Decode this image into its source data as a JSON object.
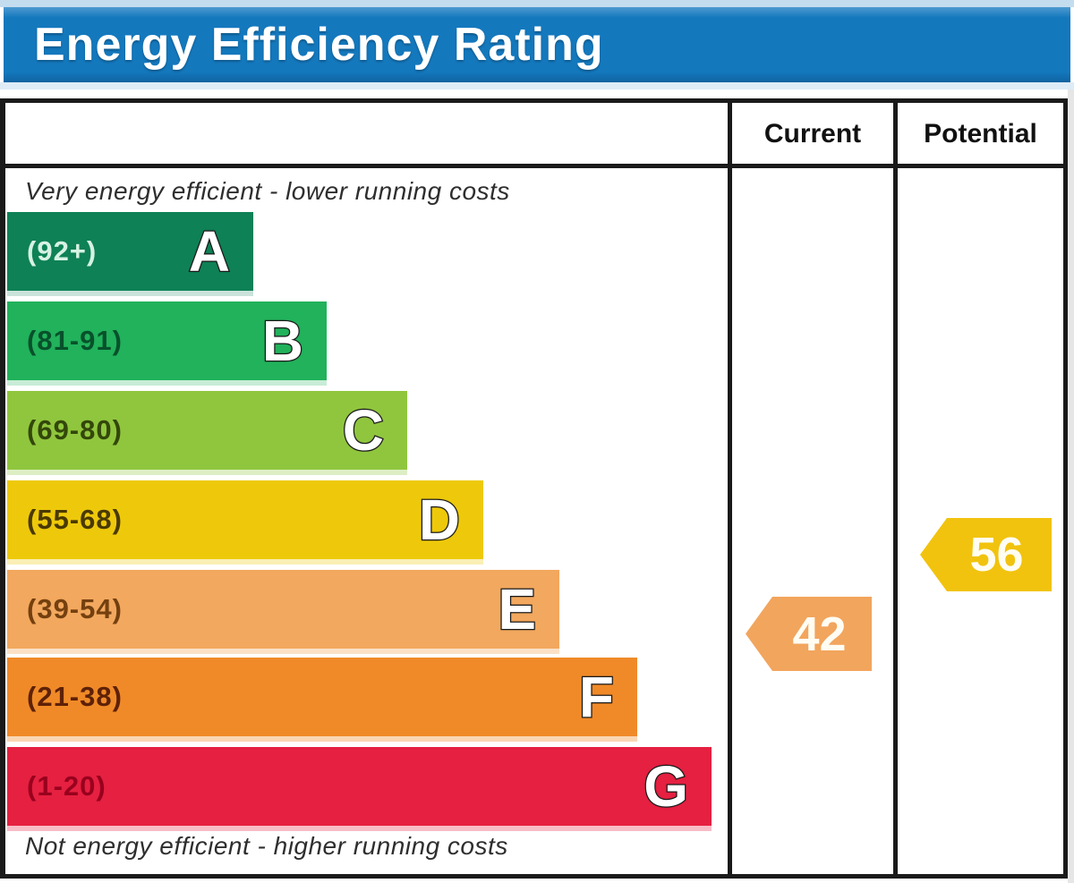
{
  "title": "Energy Efficiency Rating",
  "table": {
    "current_header": "Current",
    "potential_header": "Potential"
  },
  "notes": {
    "top": "Very energy efficient - lower running costs",
    "bottom": "Not energy efficient - higher running costs"
  },
  "bands": [
    {
      "letter": "A",
      "range": "(92+)",
      "score_range": "92+",
      "color": "#0e8156"
    },
    {
      "letter": "B",
      "range": "(81-91)",
      "score_range": "81-91",
      "color": "#21b25b"
    },
    {
      "letter": "C",
      "range": "(69-80)",
      "score_range": "69-80",
      "color": "#90c63e"
    },
    {
      "letter": "D",
      "range": "(55-68)",
      "score_range": "55-68",
      "color": "#eec90b"
    },
    {
      "letter": "E",
      "range": "(39-54)",
      "score_range": "39-54",
      "color": "#f2a85e"
    },
    {
      "letter": "F",
      "range": "(21-38)",
      "score_range": "21-38",
      "color": "#f08a28"
    },
    {
      "letter": "G",
      "range": "(1-20)",
      "score_range": "1-20",
      "color": "#e52041"
    }
  ],
  "ratings": {
    "current": {
      "value": "42",
      "band": "E",
      "color": "#f2a55d"
    },
    "potential": {
      "value": "56",
      "band": "D",
      "color": "#f1c30e"
    }
  },
  "header_color": "#1478bd",
  "chart_data": {
    "type": "bar",
    "title": "Energy Efficiency Rating",
    "orientation": "horizontal",
    "categories": [
      "A (92+)",
      "B (81-91)",
      "C (69-80)",
      "D (55-68)",
      "E (39-54)",
      "F (21-38)",
      "G (1-20)"
    ],
    "band_colors": [
      "#0e8156",
      "#21b25b",
      "#90c63e",
      "#eec90b",
      "#f2a85e",
      "#f08a28",
      "#e52041"
    ],
    "series": [
      {
        "name": "band-relative-length",
        "values": [
          1,
          2,
          3,
          4,
          5,
          6,
          7
        ]
      }
    ],
    "markers": [
      {
        "name": "Current",
        "value": 42,
        "band": "E",
        "color": "#f2a55d"
      },
      {
        "name": "Potential",
        "value": 56,
        "band": "D",
        "color": "#f1c30e"
      }
    ],
    "value_scale": [
      1,
      100
    ],
    "annotations": [
      "Very energy efficient - lower running costs",
      "Not energy efficient - higher running costs"
    ],
    "legend": [
      "Current",
      "Potential"
    ],
    "grid": false
  }
}
